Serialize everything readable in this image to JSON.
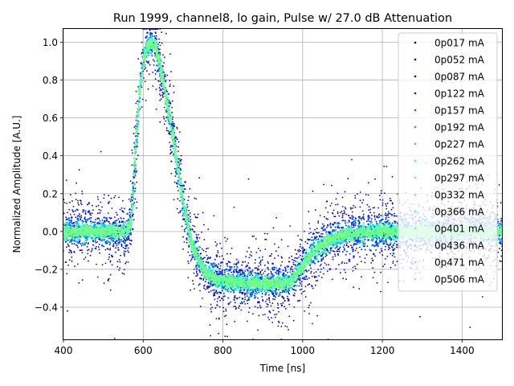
{
  "chart_data": {
    "type": "scatter",
    "title": "Run 1999, channel8, lo gain, Pulse w/ 27.0 dB Attenuation",
    "xlabel": "Time [ns]",
    "ylabel": "Normalized Amplitude [A.U.]",
    "xlim": [
      400,
      1500
    ],
    "ylim": [
      -0.57,
      1.07
    ],
    "xticks": [
      400,
      600,
      800,
      1000,
      1200,
      1400
    ],
    "xtick_labels": [
      "400",
      "600",
      "800",
      "1000",
      "1200",
      "1400"
    ],
    "yticks": [
      -0.4,
      -0.2,
      0.0,
      0.2,
      0.4,
      0.6,
      0.8,
      1.0
    ],
    "ytick_labels": [
      "−0.4",
      "−0.2",
      "0.0",
      "0.2",
      "0.4",
      "0.6",
      "0.8",
      "1.0"
    ],
    "grid": true,
    "legend_position": "top-right",
    "pulse_shape": {
      "x": [
        400,
        560,
        570,
        580,
        590,
        600,
        610,
        620,
        630,
        640,
        650,
        660,
        680,
        700,
        720,
        740,
        760,
        780,
        800,
        850,
        900,
        950,
        970,
        990,
        1010,
        1030,
        1060,
        1100,
        1150,
        1200,
        1300,
        1500
      ],
      "y": [
        0.0,
        0.0,
        0.05,
        0.4,
        0.72,
        0.9,
        0.98,
        1.0,
        0.98,
        0.9,
        0.8,
        0.68,
        0.43,
        0.16,
        -0.05,
        -0.16,
        -0.22,
        -0.25,
        -0.26,
        -0.27,
        -0.275,
        -0.27,
        -0.26,
        -0.21,
        -0.15,
        -0.1,
        -0.05,
        -0.02,
        -0.005,
        0.0,
        0.0,
        0.0
      ]
    },
    "series": [
      {
        "name": "0p017 mA",
        "color": "#000080",
        "noise": 0.14
      },
      {
        "name": "0p052 mA",
        "color": "#0000c4",
        "noise": 0.09
      },
      {
        "name": "0p087 mA",
        "color": "#0000ff",
        "noise": 0.065
      },
      {
        "name": "0p122 mA",
        "color": "#0020ff",
        "noise": 0.05
      },
      {
        "name": "0p157 mA",
        "color": "#0060ff",
        "noise": 0.04
      },
      {
        "name": "0p192 mA",
        "color": "#00a0ff",
        "noise": 0.032
      },
      {
        "name": "0p227 mA",
        "color": "#00d4ff",
        "noise": 0.027
      },
      {
        "name": "0p262 mA",
        "color": "#16ffe1",
        "noise": 0.023
      },
      {
        "name": "0p297 mA",
        "color": "#3fffb7",
        "noise": 0.02
      },
      {
        "name": "0p332 mA",
        "color": "#5dff9a",
        "noise": 0.018
      },
      {
        "name": "0p366 mA",
        "color": "#6bff8c",
        "noise": 0.016
      },
      {
        "name": "0p401 mA",
        "color": "#7bff7b",
        "noise": 0.015
      },
      {
        "name": "0p436 mA",
        "color": "#6bff8c",
        "noise": 0.014
      },
      {
        "name": "0p471 mA",
        "color": "#5dff9a",
        "noise": 0.013
      },
      {
        "name": "0p506 mA",
        "color": "#7bff7b",
        "noise": 0.012
      }
    ]
  }
}
